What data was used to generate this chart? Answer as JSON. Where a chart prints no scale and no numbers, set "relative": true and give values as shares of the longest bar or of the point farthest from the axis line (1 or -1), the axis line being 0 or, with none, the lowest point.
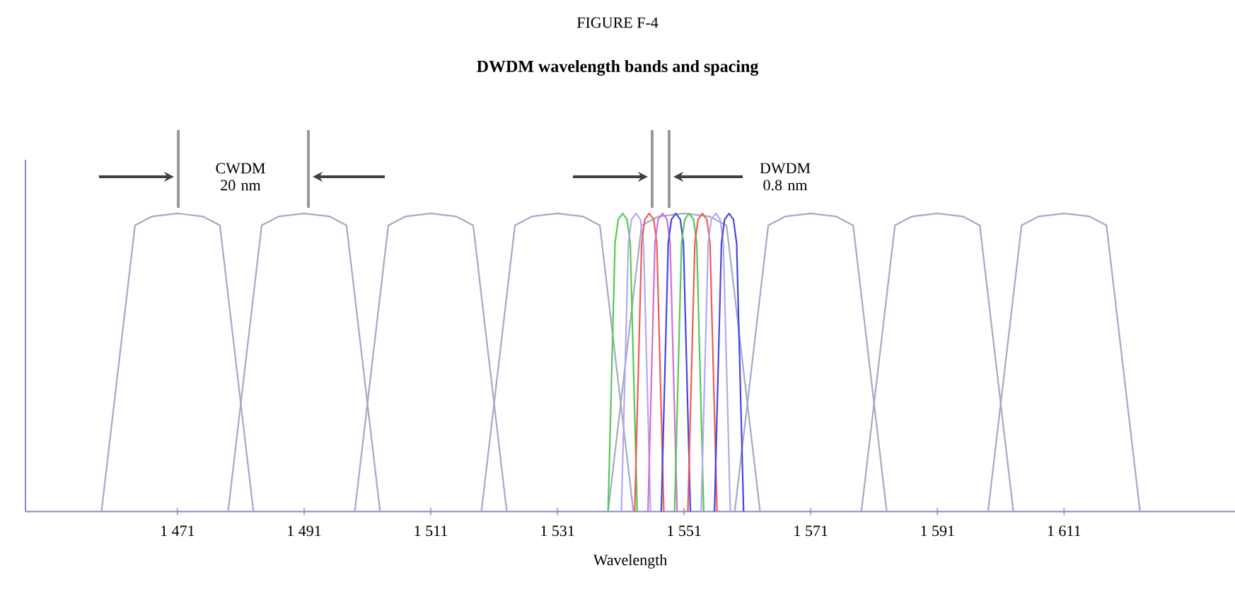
{
  "chart_data": {
    "type": "line",
    "title": "DWDM wavelength bands and spacing",
    "xlabel": "Wavelength",
    "relative": true,
    "xlim": [
      1447,
      1638
    ],
    "xticks": [
      {
        "value": 1471,
        "label": "1 471"
      },
      {
        "value": 1491,
        "label": "1 491"
      },
      {
        "value": 1511,
        "label": "1 511"
      },
      {
        "value": 1531,
        "label": "1 531"
      },
      {
        "value": 1551,
        "label": "1 551"
      },
      {
        "value": 1571,
        "label": "1 571"
      },
      {
        "value": 1591,
        "label": "1 591"
      },
      {
        "value": 1611,
        "label": "1 611"
      }
    ],
    "annotations": [
      "FIGURE F-4",
      "CWDM 20 nm",
      "DWDM 0.8 nm"
    ],
    "series": [
      {
        "color": "#a3aac4",
        "x": [
          1459,
          1464.3,
          1467,
          1471,
          1475,
          1477.7,
          1483
        ],
        "values": [
          0,
          0.96,
          0.99,
          1,
          0.99,
          0.96,
          0
        ]
      },
      {
        "color": "#a3aac4",
        "x": [
          1479,
          1484.3,
          1487,
          1491,
          1495,
          1497.7,
          1503
        ],
        "values": [
          0,
          0.96,
          0.99,
          1,
          0.99,
          0.96,
          0
        ]
      },
      {
        "color": "#a3aac4",
        "x": [
          1499,
          1504.3,
          1507,
          1511,
          1515,
          1517.7,
          1523
        ],
        "values": [
          0,
          0.96,
          0.99,
          1,
          0.99,
          0.96,
          0
        ]
      },
      {
        "color": "#a3aac4",
        "x": [
          1519,
          1524.3,
          1527,
          1531,
          1535,
          1537.7,
          1543
        ],
        "values": [
          0,
          0.96,
          0.99,
          1,
          0.99,
          0.96,
          0
        ]
      },
      {
        "color": "#a3aac4",
        "x": [
          1539,
          1544.3,
          1547,
          1551,
          1555,
          1557.7,
          1563
        ],
        "values": [
          0,
          0.96,
          0.99,
          1,
          0.99,
          0.96,
          0
        ]
      },
      {
        "color": "#a3aac4",
        "x": [
          1559,
          1564.3,
          1567,
          1571,
          1575,
          1577.7,
          1583
        ],
        "values": [
          0,
          0.96,
          0.99,
          1,
          0.99,
          0.96,
          0
        ]
      },
      {
        "color": "#a3aac4",
        "x": [
          1579,
          1584.3,
          1587,
          1591,
          1595,
          1597.7,
          1603
        ],
        "values": [
          0,
          0.96,
          0.99,
          1,
          0.99,
          0.96,
          0
        ]
      },
      {
        "color": "#a3aac4",
        "x": [
          1599,
          1604.3,
          1607,
          1611,
          1615,
          1617.7,
          1623
        ],
        "values": [
          0,
          0.96,
          0.99,
          1,
          0.99,
          0.96,
          0
        ]
      },
      {
        "color": "#55c855",
        "x": [
          1539,
          1540.1,
          1540.6,
          1541.3,
          1542,
          1542.5,
          1543.6
        ],
        "values": [
          0,
          0.9,
          0.98,
          1,
          0.98,
          0.9,
          0
        ]
      },
      {
        "color": "#b4a8f0",
        "x": [
          1541.1,
          1542.2,
          1542.7,
          1543.4,
          1544.1,
          1544.6,
          1545.7
        ],
        "values": [
          0,
          0.9,
          0.98,
          1,
          0.98,
          0.9,
          0
        ]
      },
      {
        "color": "#f05a5a",
        "x": [
          1543.2,
          1544.3,
          1544.8,
          1545.5,
          1546.2,
          1546.7,
          1547.8
        ],
        "values": [
          0,
          0.9,
          0.98,
          1,
          0.98,
          0.9,
          0
        ]
      },
      {
        "color": "#d070d0",
        "x": [
          1545.3,
          1546.4,
          1546.9,
          1547.6,
          1548.3,
          1548.8,
          1549.9
        ],
        "values": [
          0,
          0.9,
          0.98,
          1,
          0.98,
          0.9,
          0
        ]
      },
      {
        "color": "#4545e0",
        "x": [
          1547.4,
          1548.5,
          1549,
          1549.7,
          1550.4,
          1550.9,
          1552
        ],
        "values": [
          0,
          0.9,
          0.98,
          1,
          0.98,
          0.9,
          0
        ]
      },
      {
        "color": "#55c855",
        "x": [
          1549.5,
          1550.6,
          1551.1,
          1551.8,
          1552.5,
          1553,
          1554.1
        ],
        "values": [
          0,
          0.9,
          0.98,
          1,
          0.98,
          0.9,
          0
        ]
      },
      {
        "color": "#f05a5a",
        "x": [
          1551.6,
          1552.7,
          1553.2,
          1553.9,
          1554.6,
          1555.1,
          1556.2
        ],
        "values": [
          0,
          0.9,
          0.98,
          1,
          0.98,
          0.9,
          0
        ]
      },
      {
        "color": "#b4a8f0",
        "x": [
          1553.7,
          1554.8,
          1555.3,
          1556,
          1556.7,
          1557.2,
          1558.3
        ],
        "values": [
          0,
          0.9,
          0.98,
          1,
          0.98,
          0.9,
          0
        ]
      },
      {
        "color": "#4545e0",
        "x": [
          1555.8,
          1556.9,
          1557.4,
          1558.1,
          1558.8,
          1559.3,
          1560.4
        ],
        "values": [
          0,
          0.9,
          0.98,
          1,
          0.98,
          0.9,
          0
        ]
      }
    ]
  }
}
